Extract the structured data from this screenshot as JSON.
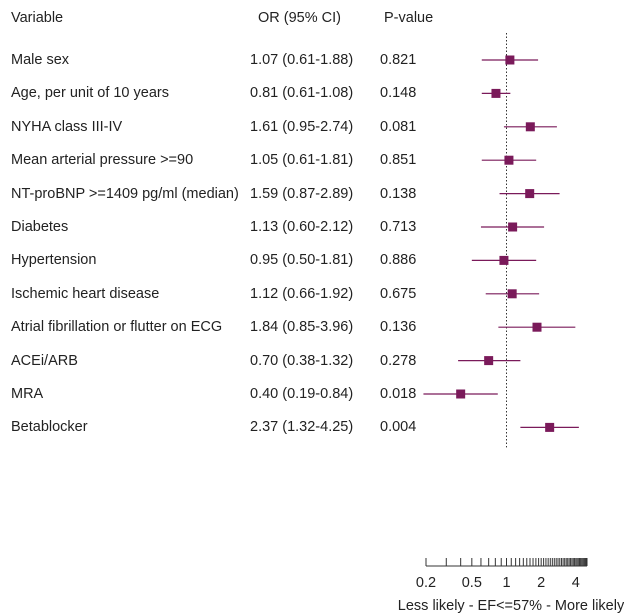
{
  "chart_data": {
    "type": "forest",
    "headers": {
      "variable": "Variable",
      "or_ci": "OR (95% CI)",
      "pvalue": "P-value"
    },
    "rows": [
      {
        "variable": "Male sex",
        "or_ci": "1.07 (0.61-1.88)",
        "p": "0.821",
        "or": 1.07,
        "lo": 0.61,
        "hi": 1.88
      },
      {
        "variable": "Age, per unit of 10 years",
        "or_ci": "0.81 (0.61-1.08)",
        "p": "0.148",
        "or": 0.81,
        "lo": 0.61,
        "hi": 1.08
      },
      {
        "variable": "NYHA class III-IV",
        "or_ci": "1.61 (0.95-2.74)",
        "p": "0.081",
        "or": 1.61,
        "lo": 0.95,
        "hi": 2.74
      },
      {
        "variable": "Mean arterial pressure >=90",
        "or_ci": "1.05 (0.61-1.81)",
        "p": "0.851",
        "or": 1.05,
        "lo": 0.61,
        "hi": 1.81
      },
      {
        "variable": "NT-proBNP >=1409 pg/ml (median)",
        "or_ci": "1.59 (0.87-2.89)",
        "p": "0.138",
        "or": 1.59,
        "lo": 0.87,
        "hi": 2.89
      },
      {
        "variable": "Diabetes",
        "or_ci": "1.13 (0.60-2.12)",
        "p": "0.713",
        "or": 1.13,
        "lo": 0.6,
        "hi": 2.12
      },
      {
        "variable": "Hypertension",
        "or_ci": "0.95 (0.50-1.81)",
        "p": "0.886",
        "or": 0.95,
        "lo": 0.5,
        "hi": 1.81
      },
      {
        "variable": "Ischemic heart disease",
        "or_ci": "1.12 (0.66-1.92)",
        "p": "0.675",
        "or": 1.12,
        "lo": 0.66,
        "hi": 1.92
      },
      {
        "variable": "Atrial fibrillation or flutter on ECG",
        "or_ci": "1.84 (0.85-3.96)",
        "p": "0.136",
        "or": 1.84,
        "lo": 0.85,
        "hi": 3.96
      },
      {
        "variable": "ACEi/ARB",
        "or_ci": "0.70 (0.38-1.32)",
        "p": "0.278",
        "or": 0.7,
        "lo": 0.38,
        "hi": 1.32
      },
      {
        "variable": "MRA",
        "or_ci": "0.40 (0.19-0.84)",
        "p": "0.018",
        "or": 0.4,
        "lo": 0.19,
        "hi": 0.84
      },
      {
        "variable": "Betablocker",
        "or_ci": "2.37 (1.32-4.25)",
        "p": "0.004",
        "or": 2.37,
        "lo": 1.32,
        "hi": 4.25
      }
    ],
    "x_scale": "log",
    "reference_value": 1,
    "xlim": [
      0.2,
      5
    ],
    "tick_labels": [
      "0.2",
      "0.5",
      "1",
      "2",
      "4"
    ],
    "tick_values": [
      0.2,
      0.5,
      1,
      2,
      4
    ],
    "minor_ticks": [
      0.2,
      0.3,
      0.4,
      0.5,
      0.6,
      0.7,
      0.8,
      0.9,
      1,
      1.1,
      1.2,
      1.3,
      1.4,
      1.5,
      1.6,
      1.7,
      1.8,
      1.9,
      2,
      2.1,
      2.2,
      2.3,
      2.4,
      2.5,
      2.6,
      2.7,
      2.8,
      2.9,
      3,
      3.1,
      3.2,
      3.3,
      3.4,
      3.5,
      3.6,
      3.7,
      3.8,
      3.9,
      4,
      4.1,
      4.2,
      4.3,
      4.4,
      4.5,
      4.6,
      4.7,
      4.8,
      4.9,
      5
    ],
    "xlabel": "Less likely - EF<=57% - More likely",
    "grid": false,
    "marker_color": "#7a1a5a",
    "line_color": "#7a1a5a"
  }
}
